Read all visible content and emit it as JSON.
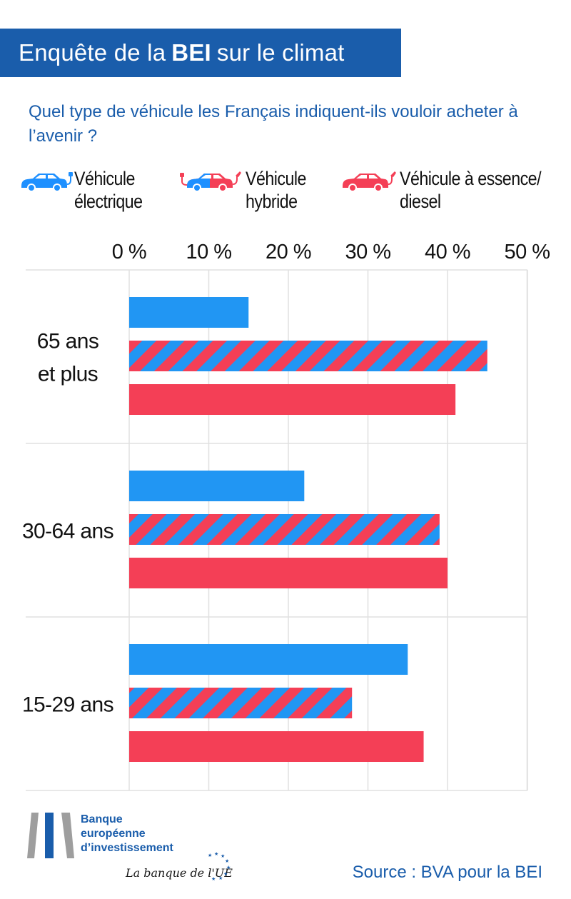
{
  "header": {
    "title_pre": "Enquête de la",
    "title_bold": "BEI",
    "title_post": "sur le climat"
  },
  "question": "Quel type de véhicule les Français indiquent-ils vouloir acheter à l’avenir ?",
  "legend": [
    {
      "label": "Véhicule\nélectrique",
      "icon": "electric-car-icon",
      "color": "#1e90ff"
    },
    {
      "label": "Véhicule\nhybride",
      "icon": "hybrid-car-icon",
      "color": "#f43f56"
    },
    {
      "label": "Véhicule à essence/\ndiesel",
      "icon": "fuel-car-icon",
      "color": "#f43f56"
    }
  ],
  "colors": {
    "electric": "#2196f3",
    "fuel": "#f43f56",
    "title_bg": "#1a5dab",
    "grid": "#e0e0e0"
  },
  "chart_data": {
    "type": "bar",
    "orientation": "horizontal",
    "title": "Quel type de véhicule les Français indiquent-ils vouloir acheter à l’avenir ?",
    "categories": [
      "65 ans\net plus",
      "30-64 ans",
      "15-29 ans"
    ],
    "series": [
      {
        "name": "Véhicule électrique",
        "values": [
          15,
          22,
          35
        ],
        "style": "solid-blue"
      },
      {
        "name": "Véhicule hybride",
        "values": [
          45,
          39,
          28
        ],
        "style": "striped"
      },
      {
        "name": "Véhicule à essence/diesel",
        "values": [
          41,
          40,
          37
        ],
        "style": "solid-red"
      }
    ],
    "xlim": [
      0,
      50
    ],
    "xticks": [
      0,
      10,
      20,
      30,
      40,
      50
    ],
    "tick_suffix": " %",
    "grid": true,
    "legend_position": "top"
  },
  "footer": {
    "bank_name_lines": [
      "Banque",
      "européenne",
      "d’investissement"
    ],
    "tagline": "La banque de l'UE",
    "source": "Source : BVA pour la BEI"
  }
}
